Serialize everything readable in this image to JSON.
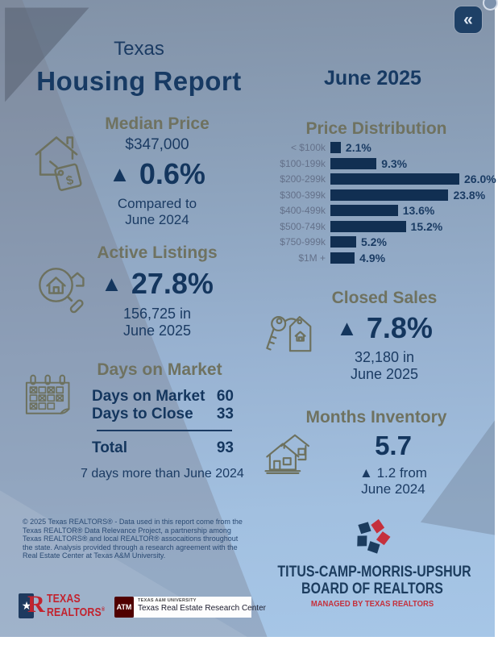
{
  "page": {
    "title_line1": "Texas",
    "title_line2": "Housing Report",
    "report_date": "June 2025"
  },
  "controls": {
    "collapse_button_glyph": "«"
  },
  "median_price": {
    "heading": "Median Price",
    "value": "$347,000",
    "arrow": "▲",
    "change": "0.6%",
    "note_line1": "Compared to",
    "note_line2": "June 2024"
  },
  "active_listings": {
    "heading": "Active Listings",
    "arrow": "▲",
    "change": "27.8%",
    "note_line1": "156,725 in",
    "note_line2": "June 2025"
  },
  "days_on_market": {
    "heading": "Days on Market",
    "rows": [
      {
        "label": "Days on Market",
        "value": "60"
      },
      {
        "label": "Days to Close",
        "value": "33"
      }
    ],
    "total_label": "Total",
    "total_value": "93",
    "footnote": "7 days more than June 2024"
  },
  "closed_sales": {
    "heading": "Closed Sales",
    "arrow": "▲",
    "change": "7.8%",
    "note_line1": "32,180 in",
    "note_line2": "June 2025"
  },
  "months_inventory": {
    "heading": "Months Inventory",
    "value": "5.7",
    "note_line1": "▲ 1.2 from",
    "note_line2": "June 2024"
  },
  "chart_data": {
    "type": "bar",
    "orientation": "horizontal",
    "title": "Price Distribution",
    "categories": [
      "< $100k",
      "$100-199k",
      "$200-299k",
      "$300-399k",
      "$400-499k",
      "$500-749k",
      "$750-999k",
      "$1M +"
    ],
    "values": [
      2.1,
      9.3,
      26.0,
      23.8,
      13.6,
      15.2,
      5.2,
      4.9
    ],
    "value_labels": [
      "2.1%",
      "9.3%",
      "26.0%",
      "23.8%",
      "13.6%",
      "15.2%",
      "5.2%",
      "4.9%"
    ],
    "xlim": [
      0,
      26
    ],
    "bar_color": "#112f52",
    "grid": false,
    "legend": false
  },
  "disclaimer": "© 2025 Texas REALTORS® - Data used in this report come from the Texas REALTOR® Data Relevance Project, a partnership among Texas REALTORS® and local REALTOR® assocaitions throughout the state. Analysis provided through a research agreement with the Real Estate Center at Texas A&M University.",
  "logos": {
    "texas_realtors": {
      "line1": "TEXAS",
      "line2": "REALTORS",
      "registered": "®",
      "star": "★"
    },
    "tamu": {
      "monogram": "ATM",
      "line1": "TEXAS A&M UNIVERSITY",
      "line2": "Texas Real Estate Research Center"
    },
    "board": {
      "line1": "TITUS-CAMP-MORRIS-UPSHUR",
      "line2": "BOARD OF REALTORS",
      "line3": "MANAGED BY TEXAS REALTORS"
    }
  },
  "colors": {
    "navy_text": "#1b3b63",
    "bar_navy": "#112f52",
    "olive_heading": "#6f7260",
    "chart_label": "#64718a",
    "realtor_red": "#c2232e",
    "tamu_maroon": "#500000",
    "button_navy": "#1e4066"
  }
}
